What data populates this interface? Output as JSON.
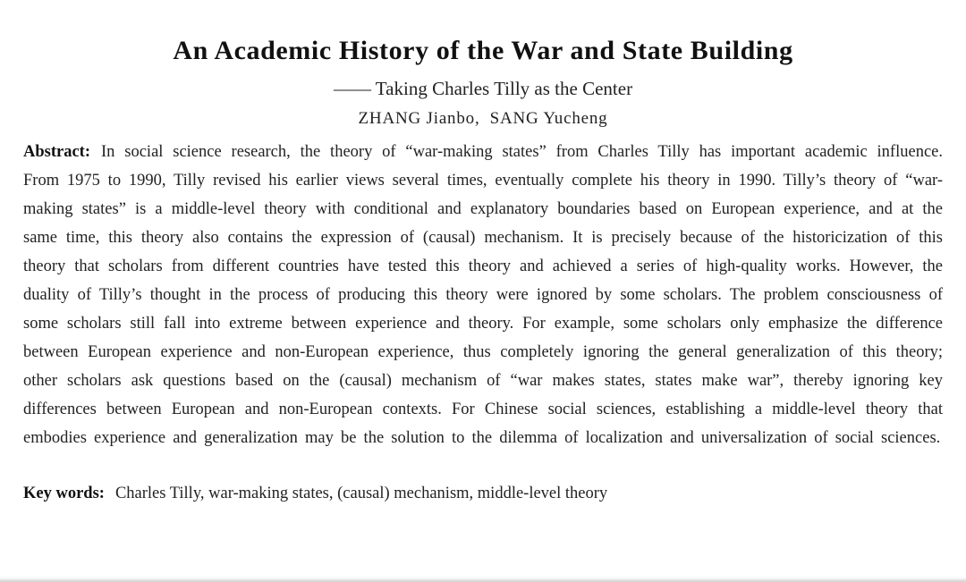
{
  "paper": {
    "title": "An Academic History of the War and State Building",
    "subtitle": "—— Taking Charles Tilly as the Center",
    "authors": "ZHANG Jianbo,  SANG Yucheng",
    "abstract": {
      "label": "Abstract:",
      "text": "In social science research, the theory of “war-making states” from Charles Tilly has important academic influence. From 1975 to 1990, Tilly revised his earlier views several times, eventually complete his theory in 1990. Tilly’s theory of “war-making states” is a middle-level theory with conditional and explanatory boundaries based on European experience, and at the same time, this theory also contains the expression of (causal) mechanism. It is precisely because of the historicization of this theory that scholars from different countries have tested this theory and achieved a series of high-quality works. However, the duality of Tilly’s thought in the process of producing this theory were ignored by some scholars. The problem consciousness of some scholars still fall into extreme between experience and theory. For example, some scholars only emphasize the difference between European experience and non-European experience, thus completely ignoring the general generalization of this theory; other scholars ask questions based on the (causal) mechanism of “war makes states, states make war”, thereby ignoring key differences between European and non-European contexts. For Chinese social sciences, establishing a middle-level theory that embodies experience and generalization may be the solution to the dilemma of localization and universalization of social sciences."
    },
    "keywords": {
      "label": "Key words:",
      "text": "Charles Tilly, war-making states, (causal) mechanism, middle-level theory"
    },
    "colors": {
      "background": "#ffffff",
      "text": "#222222",
      "heading": "#111111"
    }
  }
}
